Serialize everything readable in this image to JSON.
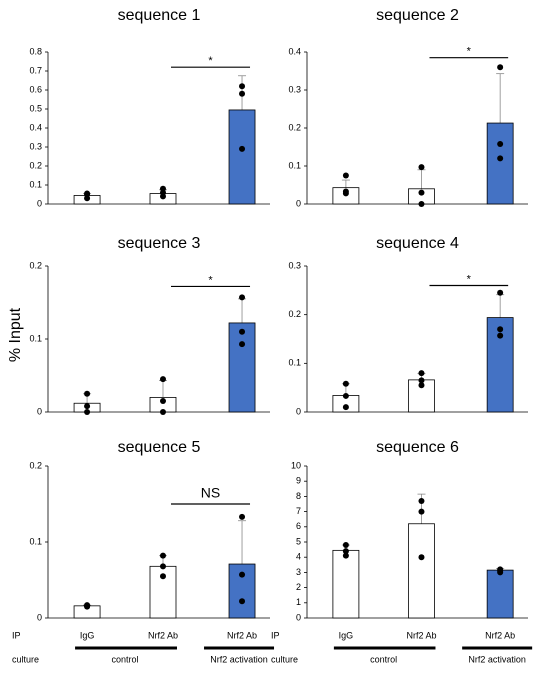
{
  "ylabel": "% Input",
  "footer": {
    "ip": "IP",
    "culture": "culture",
    "groups": [
      "control",
      "Nrf2 activation"
    ]
  },
  "chart_data": [
    {
      "type": "bar",
      "title": "sequence 1",
      "values": [
        0.045,
        0.055,
        0.495
      ],
      "errors": [
        0.01,
        0.02,
        0.18
      ],
      "points": [
        [
          0.03,
          0.05,
          0.055
        ],
        [
          0.04,
          0.06,
          0.08
        ],
        [
          0.29,
          0.58,
          0.62
        ]
      ],
      "colors": [
        "#ffffff",
        "#ffffff",
        "#4472c4"
      ],
      "ylim": [
        0,
        0.8
      ],
      "yticks": [
        0,
        0.1,
        0.2,
        0.3,
        0.4,
        0.5,
        0.6,
        0.7,
        0.8
      ],
      "significance": {
        "label": "*",
        "y": 0.72
      }
    },
    {
      "type": "bar",
      "title": "sequence 2",
      "values": [
        0.043,
        0.04,
        0.213
      ],
      "errors": [
        0.02,
        0.05,
        0.13
      ],
      "points": [
        [
          0.028,
          0.033,
          0.075
        ],
        [
          0.0,
          0.03,
          0.097
        ],
        [
          0.12,
          0.158,
          0.36
        ]
      ],
      "colors": [
        "#ffffff",
        "#ffffff",
        "#4472c4"
      ],
      "ylim": [
        0,
        0.4
      ],
      "yticks": [
        0,
        0.1,
        0.2,
        0.3,
        0.4
      ],
      "significance": {
        "label": "*",
        "y": 0.385
      }
    },
    {
      "type": "bar",
      "title": "sequence 3",
      "values": [
        0.012,
        0.02,
        0.122
      ],
      "errors": [
        0.013,
        0.023,
        0.033
      ],
      "points": [
        [
          0.0,
          0.008,
          0.025
        ],
        [
          0.0,
          0.015,
          0.045
        ],
        [
          0.093,
          0.11,
          0.157
        ]
      ],
      "colors": [
        "#ffffff",
        "#ffffff",
        "#4472c4"
      ],
      "ylim": [
        0,
        0.2
      ],
      "yticks": [
        0,
        0.1,
        0.2
      ],
      "significance": {
        "label": "*",
        "y": 0.172
      }
    },
    {
      "type": "bar",
      "title": "sequence 4",
      "values": [
        0.034,
        0.066,
        0.194
      ],
      "errors": [
        0.024,
        0.013,
        0.047
      ],
      "points": [
        [
          0.01,
          0.033,
          0.058
        ],
        [
          0.055,
          0.065,
          0.08
        ],
        [
          0.157,
          0.17,
          0.245
        ]
      ],
      "colors": [
        "#ffffff",
        "#ffffff",
        "#4472c4"
      ],
      "ylim": [
        0,
        0.3
      ],
      "yticks": [
        0,
        0.1,
        0.2,
        0.3
      ],
      "significance": {
        "label": "*",
        "y": 0.26
      }
    },
    {
      "type": "bar",
      "title": "sequence 5",
      "categories": [
        "IgG",
        "Nrf2 Ab",
        "Nrf2 Ab"
      ],
      "values": [
        0.016,
        0.068,
        0.071
      ],
      "errors": [
        0.001,
        0.014,
        0.057
      ],
      "points": [
        [
          0.015,
          0.016,
          0.017
        ],
        [
          0.055,
          0.068,
          0.082
        ],
        [
          0.022,
          0.057,
          0.133
        ]
      ],
      "colors": [
        "#ffffff",
        "#ffffff",
        "#4472c4"
      ],
      "ylim": [
        0,
        0.2
      ],
      "yticks": [
        0,
        0.1,
        0.2
      ],
      "significance": {
        "label": "NS",
        "y": 0.15
      }
    },
    {
      "type": "bar",
      "title": "sequence 6",
      "categories": [
        "IgG",
        "Nrf2 Ab",
        "Nrf2 Ab"
      ],
      "values": [
        4.45,
        6.2,
        3.15
      ],
      "errors": [
        0.35,
        1.95,
        0.1
      ],
      "points": [
        [
          4.1,
          4.4,
          4.8
        ],
        [
          4.0,
          7.0,
          7.7
        ],
        [
          3.0,
          3.1,
          3.2
        ]
      ],
      "colors": [
        "#ffffff",
        "#ffffff",
        "#4472c4"
      ],
      "ylim": [
        0,
        10
      ],
      "yticks": [
        0,
        1,
        2,
        3,
        4,
        5,
        6,
        7,
        8,
        9,
        10
      ]
    }
  ]
}
